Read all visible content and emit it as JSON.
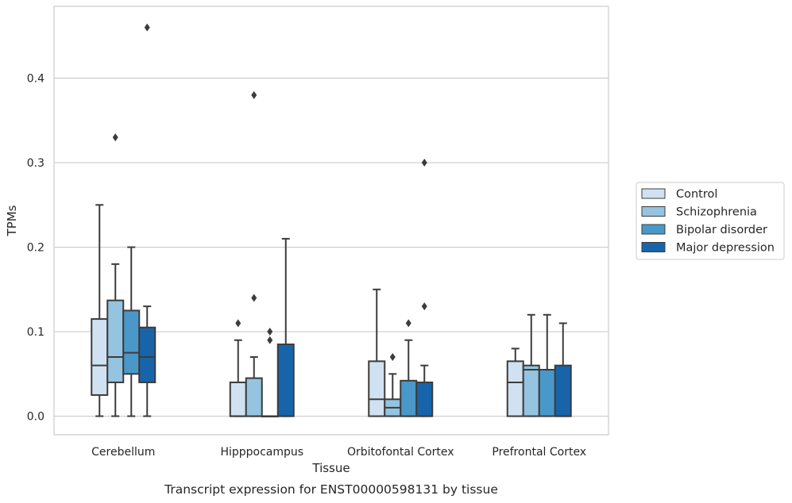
{
  "caption": "Transcript expression for ENST00000598131 by tissue",
  "chart_data": {
    "type": "boxplot",
    "title": "",
    "xlabel": "Tissue",
    "ylabel": "TPMs",
    "ylim": [
      -0.022,
      0.485
    ],
    "yticks": [
      0.0,
      0.1,
      0.2,
      0.3,
      0.4
    ],
    "ytick_labels": [
      "0.0",
      "0.1",
      "0.2",
      "0.3",
      "0.4"
    ],
    "grid": "horizontal",
    "legend_position": "right",
    "categories": [
      "Cerebellum",
      "Hipppocampus",
      "Orbitofontal Cortex",
      "Prefrontal Cortex"
    ],
    "series": [
      {
        "name": "Control",
        "color": "#d0e1f2",
        "boxes": [
          {
            "whislo": 0.0,
            "q1": 0.025,
            "med": 0.06,
            "q3": 0.115,
            "whishi": 0.25,
            "fliers": []
          },
          {
            "whislo": 0.0,
            "q1": 0.0,
            "med": 0.0,
            "q3": 0.04,
            "whishi": 0.09,
            "fliers": [
              0.11
            ]
          },
          {
            "whislo": 0.0,
            "q1": 0.0,
            "med": 0.02,
            "q3": 0.065,
            "whishi": 0.15,
            "fliers": []
          },
          {
            "whislo": 0.0,
            "q1": 0.0,
            "med": 0.04,
            "q3": 0.065,
            "whishi": 0.08,
            "fliers": []
          }
        ]
      },
      {
        "name": "Schizophrenia",
        "color": "#94c4df",
        "boxes": [
          {
            "whislo": 0.0,
            "q1": 0.04,
            "med": 0.07,
            "q3": 0.137,
            "whishi": 0.18,
            "fliers": [
              0.33
            ]
          },
          {
            "whislo": 0.0,
            "q1": 0.0,
            "med": 0.0,
            "q3": 0.045,
            "whishi": 0.07,
            "fliers": [
              0.14,
              0.38
            ]
          },
          {
            "whislo": 0.0,
            "q1": 0.0,
            "med": 0.01,
            "q3": 0.02,
            "whishi": 0.05,
            "fliers": [
              0.07
            ]
          },
          {
            "whislo": 0.0,
            "q1": 0.0,
            "med": 0.055,
            "q3": 0.06,
            "whishi": 0.12,
            "fliers": []
          }
        ]
      },
      {
        "name": "Bipolar disorder",
        "color": "#4a98c9",
        "boxes": [
          {
            "whislo": 0.0,
            "q1": 0.05,
            "med": 0.075,
            "q3": 0.125,
            "whishi": 0.2,
            "fliers": []
          },
          {
            "whislo": 0.0,
            "q1": 0.0,
            "med": 0.0,
            "q3": 0.0,
            "whishi": 0.0,
            "fliers": [
              0.09,
              0.1
            ]
          },
          {
            "whislo": 0.0,
            "q1": 0.0,
            "med": 0.0,
            "q3": 0.042,
            "whishi": 0.09,
            "fliers": [
              0.11
            ]
          },
          {
            "whislo": 0.0,
            "q1": 0.0,
            "med": 0.055,
            "q3": 0.055,
            "whishi": 0.12,
            "fliers": []
          }
        ]
      },
      {
        "name": "Major depression",
        "color": "#1764ab",
        "boxes": [
          {
            "whislo": 0.0,
            "q1": 0.04,
            "med": 0.07,
            "q3": 0.105,
            "whishi": 0.13,
            "fliers": [
              0.46
            ]
          },
          {
            "whislo": 0.0,
            "q1": 0.0,
            "med": 0.0,
            "q3": 0.085,
            "whishi": 0.21,
            "fliers": []
          },
          {
            "whislo": 0.0,
            "q1": 0.0,
            "med": 0.0,
            "q3": 0.04,
            "whishi": 0.06,
            "fliers": [
              0.13,
              0.3
            ]
          },
          {
            "whislo": 0.0,
            "q1": 0.0,
            "med": 0.0,
            "q3": 0.06,
            "whishi": 0.11,
            "fliers": []
          }
        ]
      }
    ]
  }
}
